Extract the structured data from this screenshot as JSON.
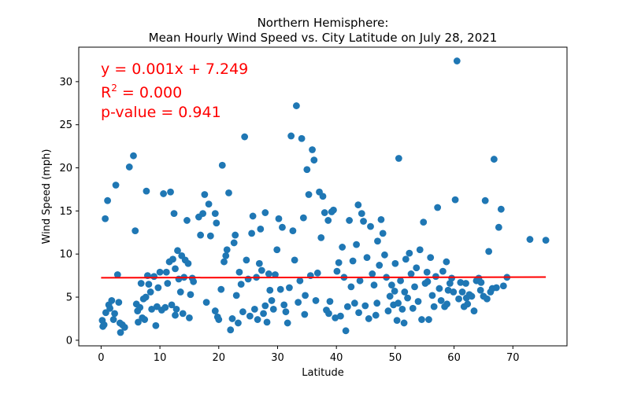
{
  "chart_data": {
    "type": "scatter",
    "title_line1": "Northern Hemisphere:",
    "title_line2": "Mean Hourly Wind Speed vs. City Latitude  on July 28, 2021",
    "xlabel": "Latitude",
    "ylabel": "Wind Speed (mph)",
    "xlim": [
      -3.8,
      79.2
    ],
    "ylim": [
      -0.65,
      34.0
    ],
    "xticks": [
      0,
      10,
      20,
      30,
      40,
      50,
      60,
      70
    ],
    "yticks": [
      0,
      5,
      10,
      15,
      20,
      25,
      30
    ],
    "grid": false,
    "marker_color": "#1f77b4",
    "line_color": "#ff0000",
    "regression": {
      "slope": 0.001,
      "intercept": 7.249,
      "x_range": [
        0,
        75.6
      ],
      "equation_label": "y = 0.001x + 7.249",
      "r2_prefix": "R",
      "r2_sup": "2",
      "r2_suffix": " = 0.000",
      "pvalue_label": "p-value = 0.941"
    },
    "points": [
      [
        0.2,
        2.3
      ],
      [
        0.3,
        1.6
      ],
      [
        0.5,
        1.8
      ],
      [
        0.7,
        14.1
      ],
      [
        0.8,
        3.2
      ],
      [
        1.1,
        16.2
      ],
      [
        1.3,
        4.1
      ],
      [
        1.5,
        3.7
      ],
      [
        1.8,
        4.6
      ],
      [
        2.1,
        2.4
      ],
      [
        2.3,
        3.1
      ],
      [
        2.5,
        18.0
      ],
      [
        2.8,
        7.6
      ],
      [
        3.0,
        4.4
      ],
      [
        3.2,
        2.0
      ],
      [
        3.6,
        1.8
      ],
      [
        4.0,
        1.5
      ],
      [
        4.8,
        20.1
      ],
      [
        5.5,
        21.4
      ],
      [
        5.8,
        12.7
      ],
      [
        6.0,
        4.2
      ],
      [
        6.2,
        3.4
      ],
      [
        6.3,
        2.1
      ],
      [
        6.6,
        3.8
      ],
      [
        6.8,
        6.6
      ],
      [
        7.0,
        2.6
      ],
      [
        7.2,
        4.8
      ],
      [
        7.4,
        2.4
      ],
      [
        7.7,
        17.3
      ],
      [
        7.9,
        7.5
      ],
      [
        8.1,
        6.5
      ],
      [
        8.4,
        5.6
      ],
      [
        8.6,
        3.6
      ],
      [
        9.0,
        7.4
      ],
      [
        9.3,
        1.7
      ],
      [
        9.5,
        3.9
      ],
      [
        9.7,
        6.1
      ],
      [
        10.0,
        7.9
      ],
      [
        10.3,
        3.5
      ],
      [
        10.6,
        17.0
      ],
      [
        10.9,
        3.8
      ],
      [
        11.1,
        7.9
      ],
      [
        11.3,
        6.6
      ],
      [
        11.6,
        9.1
      ],
      [
        11.8,
        17.2
      ],
      [
        12.0,
        4.1
      ],
      [
        12.2,
        9.4
      ],
      [
        12.4,
        14.7
      ],
      [
        12.6,
        8.3
      ],
      [
        12.8,
        3.6
      ],
      [
        13.0,
        10.4
      ],
      [
        13.2,
        7.1
      ],
      [
        13.5,
        5.6
      ],
      [
        13.7,
        9.8
      ],
      [
        13.9,
        3.1
      ],
      [
        14.1,
        7.3
      ],
      [
        14.3,
        9.3
      ],
      [
        14.6,
        13.9
      ],
      [
        14.8,
        8.9
      ],
      [
        15.0,
        2.6
      ],
      [
        15.2,
        5.3
      ],
      [
        15.5,
        7.2
      ],
      [
        15.7,
        6.8
      ],
      [
        16.6,
        14.3
      ],
      [
        16.9,
        12.2
      ],
      [
        17.3,
        14.7
      ],
      [
        17.6,
        16.9
      ],
      [
        17.9,
        4.4
      ],
      [
        18.3,
        15.8
      ],
      [
        18.6,
        12.1
      ],
      [
        19.4,
        14.7
      ],
      [
        19.6,
        13.6
      ],
      [
        19.8,
        2.7
      ],
      [
        20.0,
        2.4
      ],
      [
        20.4,
        5.9
      ],
      [
        20.6,
        20.3
      ],
      [
        20.9,
        9.1
      ],
      [
        21.2,
        9.8
      ],
      [
        21.4,
        10.5
      ],
      [
        21.7,
        17.1
      ],
      [
        22.0,
        1.2
      ],
      [
        22.3,
        2.5
      ],
      [
        22.6,
        11.3
      ],
      [
        22.8,
        12.2
      ],
      [
        23.0,
        5.2
      ],
      [
        23.3,
        2.0
      ],
      [
        23.5,
        7.9
      ],
      [
        23.8,
        6.5
      ],
      [
        24.1,
        3.3
      ],
      [
        24.4,
        23.6
      ],
      [
        24.7,
        9.3
      ],
      [
        25.0,
        7.1
      ],
      [
        25.3,
        2.8
      ],
      [
        25.6,
        12.4
      ],
      [
        25.8,
        14.4
      ],
      [
        26.1,
        3.6
      ],
      [
        26.4,
        7.3
      ],
      [
        26.6,
        2.4
      ],
      [
        26.9,
        8.9
      ],
      [
        27.1,
        12.9
      ],
      [
        27.3,
        8.1
      ],
      [
        27.6,
        3.1
      ],
      [
        27.9,
        14.8
      ],
      [
        28.2,
        2.1
      ],
      [
        28.5,
        7.7
      ],
      [
        28.7,
        5.8
      ],
      [
        29.0,
        4.6
      ],
      [
        29.3,
        3.6
      ],
      [
        29.6,
        7.6
      ],
      [
        29.9,
        10.5
      ],
      [
        30.2,
        14.1
      ],
      [
        30.5,
        5.9
      ],
      [
        30.8,
        13.1
      ],
      [
        31.1,
        4.1
      ],
      [
        31.4,
        3.3
      ],
      [
        31.7,
        2.0
      ],
      [
        32.0,
        6.1
      ],
      [
        32.3,
        23.7
      ],
      [
        32.6,
        12.7
      ],
      [
        32.9,
        9.3
      ],
      [
        33.2,
        27.2
      ],
      [
        33.5,
        4.4
      ],
      [
        33.8,
        6.9
      ],
      [
        34.1,
        23.4
      ],
      [
        34.4,
        14.2
      ],
      [
        34.7,
        5.2
      ],
      [
        35.0,
        19.8
      ],
      [
        35.3,
        16.9
      ],
      [
        35.6,
        7.5
      ],
      [
        35.9,
        22.1
      ],
      [
        36.2,
        20.9
      ],
      [
        36.5,
        4.6
      ],
      [
        36.8,
        7.8
      ],
      [
        37.1,
        17.2
      ],
      [
        37.4,
        11.9
      ],
      [
        37.7,
        16.7
      ],
      [
        38.0,
        14.8
      ],
      [
        38.3,
        3.5
      ],
      [
        38.6,
        13.9
      ],
      [
        38.9,
        4.5
      ],
      [
        39.2,
        14.9
      ],
      [
        39.5,
        15.1
      ],
      [
        39.8,
        2.6
      ],
      [
        40.1,
        8.0
      ],
      [
        40.4,
        9.0
      ],
      [
        40.7,
        2.8
      ],
      [
        41.0,
        10.8
      ],
      [
        41.3,
        7.3
      ],
      [
        41.6,
        1.1
      ],
      [
        41.9,
        3.9
      ],
      [
        42.2,
        13.9
      ],
      [
        42.5,
        6.2
      ],
      [
        42.8,
        9.2
      ],
      [
        43.1,
        4.3
      ],
      [
        43.4,
        11.1
      ],
      [
        43.7,
        15.7
      ],
      [
        44.0,
        6.9
      ],
      [
        44.3,
        14.7
      ],
      [
        44.6,
        13.8
      ],
      [
        44.9,
        4.0
      ],
      [
        45.2,
        9.6
      ],
      [
        45.5,
        2.5
      ],
      [
        45.8,
        13.2
      ],
      [
        46.1,
        7.7
      ],
      [
        46.4,
        6.4
      ],
      [
        46.7,
        2.9
      ],
      [
        47.0,
        11.5
      ],
      [
        47.3,
        8.7
      ],
      [
        47.6,
        14.0
      ],
      [
        47.9,
        12.4
      ],
      [
        48.2,
        9.9
      ],
      [
        48.5,
        7.3
      ],
      [
        48.8,
        3.4
      ],
      [
        49.1,
        5.1
      ],
      [
        49.4,
        6.4
      ],
      [
        49.7,
        4.1
      ],
      [
        50.0,
        8.9
      ],
      [
        50.3,
        2.3
      ],
      [
        50.6,
        21.1
      ],
      [
        50.9,
        6.9
      ],
      [
        51.2,
        3.6
      ],
      [
        51.5,
        2.0
      ],
      [
        51.8,
        9.4
      ],
      [
        52.1,
        4.9
      ],
      [
        52.4,
        10.1
      ],
      [
        52.7,
        7.7
      ],
      [
        53.0,
        3.7
      ],
      [
        53.3,
        6.2
      ],
      [
        53.6,
        8.4
      ],
      [
        53.9,
        4.5
      ],
      [
        54.2,
        10.5
      ],
      [
        54.5,
        2.4
      ],
      [
        54.8,
        13.7
      ],
      [
        55.1,
        6.6
      ],
      [
        55.4,
        7.9
      ],
      [
        55.7,
        2.4
      ],
      [
        56.0,
        9.6
      ],
      [
        56.3,
        5.2
      ],
      [
        56.6,
        3.9
      ],
      [
        56.9,
        7.4
      ],
      [
        57.2,
        15.4
      ],
      [
        57.5,
        6.0
      ],
      [
        57.8,
        4.6
      ],
      [
        58.1,
        8.0
      ],
      [
        58.4,
        3.9
      ],
      [
        58.7,
        9.1
      ],
      [
        59.0,
        5.8
      ],
      [
        59.3,
        6.6
      ],
      [
        59.6,
        7.2
      ],
      [
        59.9,
        5.6
      ],
      [
        60.2,
        16.3
      ],
      [
        60.5,
        32.4
      ],
      [
        60.8,
        4.8
      ],
      [
        61.1,
        6.7
      ],
      [
        61.4,
        5.6
      ],
      [
        61.7,
        3.9
      ],
      [
        62.0,
        6.6
      ],
      [
        62.3,
        4.2
      ],
      [
        62.6,
        5.3
      ],
      [
        63.0,
        5.1
      ],
      [
        63.4,
        3.4
      ],
      [
        63.8,
        6.9
      ],
      [
        64.2,
        7.2
      ],
      [
        64.6,
        6.7
      ],
      [
        65.0,
        5.1
      ],
      [
        65.3,
        16.2
      ],
      [
        65.6,
        4.8
      ],
      [
        65.9,
        10.3
      ],
      [
        66.2,
        5.6
      ],
      [
        66.5,
        6.0
      ],
      [
        66.8,
        21.0
      ],
      [
        67.2,
        6.1
      ],
      [
        67.6,
        13.1
      ],
      [
        68.0,
        15.2
      ],
      [
        68.4,
        6.3
      ],
      [
        69.0,
        7.3
      ],
      [
        72.9,
        11.7
      ],
      [
        75.6,
        11.6
      ],
      [
        3.3,
        0.9
      ],
      [
        7.6,
        5.0
      ],
      [
        12.6,
        2.9
      ],
      [
        19.4,
        3.4
      ],
      [
        27.9,
        4.0
      ],
      [
        34.6,
        3.0
      ],
      [
        38.7,
        3.1
      ],
      [
        43.8,
        3.2
      ],
      [
        46.9,
        4.3
      ],
      [
        49.9,
        5.7
      ],
      [
        50.5,
        4.3
      ],
      [
        51.6,
        5.6
      ],
      [
        55.5,
        6.8
      ],
      [
        58.8,
        4.2
      ],
      [
        62.1,
        4.9
      ],
      [
        64.5,
        5.8
      ]
    ]
  }
}
